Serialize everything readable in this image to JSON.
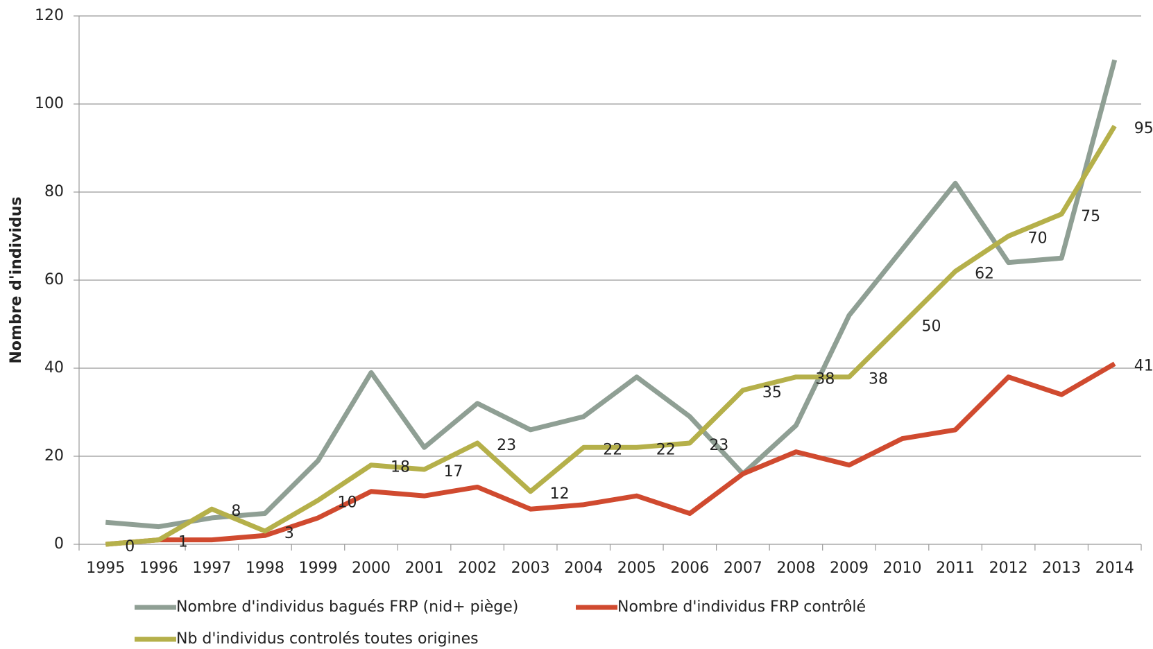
{
  "chart_data": {
    "type": "line",
    "y_label": "Nombre d'individus",
    "categories": [
      "1995",
      "1996",
      "1997",
      "1998",
      "1999",
      "2000",
      "2001",
      "2002",
      "2003",
      "2004",
      "2005",
      "2006",
      "2007",
      "2008",
      "2009",
      "2010",
      "2011",
      "2012",
      "2013",
      "2014"
    ],
    "series": [
      {
        "name": "Nombre d'individus bagués FRP (nid+ piège)",
        "color": "#8f9f94",
        "values": [
          5,
          4,
          6,
          7,
          19,
          39,
          22,
          32,
          26,
          29,
          38,
          29,
          16,
          27,
          52,
          67,
          82,
          64,
          65,
          110
        ]
      },
      {
        "name": "Nombre d'individus FRP contrôlé",
        "color": "#d04a2f",
        "values": [
          0,
          1,
          1,
          2,
          6,
          12,
          11,
          13,
          8,
          9,
          11,
          7,
          16,
          21,
          18,
          24,
          26,
          38,
          34,
          41
        ],
        "data_labels": "last"
      },
      {
        "name": "Nb d'individus controlés toutes origines",
        "color": "#b5b04a",
        "values": [
          0,
          1,
          8,
          3,
          10,
          18,
          17,
          23,
          12,
          22,
          22,
          23,
          35,
          38,
          38,
          50,
          62,
          70,
          75,
          95
        ],
        "data_labels": "all"
      }
    ],
    "ylim": [
      0,
      120
    ],
    "yticks": [
      0,
      20,
      40,
      60,
      80,
      100,
      120
    ],
    "grid": true
  }
}
